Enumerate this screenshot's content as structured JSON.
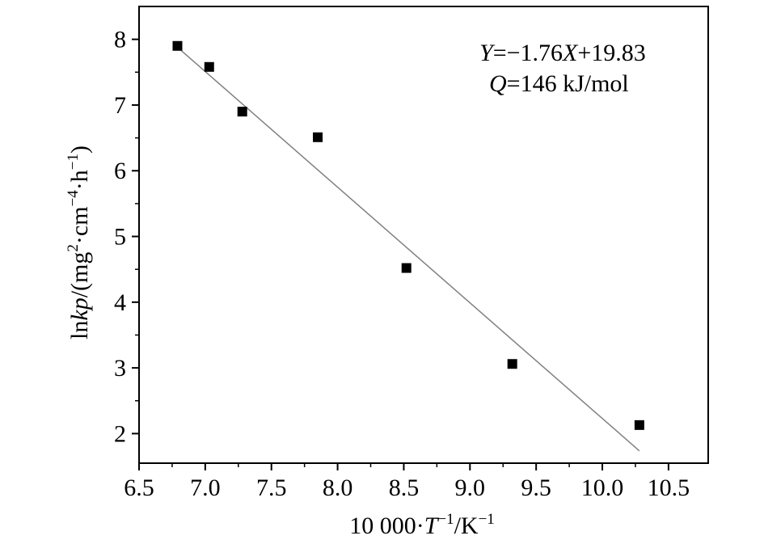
{
  "chart_data": {
    "type": "scatter",
    "title": "",
    "xlabel": {
      "prefix": "10 000·",
      "var": "T",
      "exp1": "−1",
      "unit": "/K",
      "exp2": "−1"
    },
    "ylabel": {
      "prefix": "ln",
      "var": "kp",
      "paren_open": "/(mg",
      "exp_a": "2",
      "mid": "·cm",
      "exp_b": "−4",
      "end": "·h",
      "exp_c": "−1",
      "close": ")"
    },
    "xlim": [
      6.5,
      10.8
    ],
    "ylim": [
      1.55,
      8.5
    ],
    "xticks": [
      6.5,
      7.0,
      7.5,
      8.0,
      8.5,
      9.0,
      9.5,
      10.0,
      10.5
    ],
    "xtick_labels": [
      "6.5",
      "7.0",
      "7.5",
      "8.0",
      "8.5",
      "9.0",
      "9.5",
      "10.0",
      "10.5"
    ],
    "yticks": [
      2,
      3,
      4,
      5,
      6,
      7,
      8
    ],
    "ytick_labels": [
      "2",
      "3",
      "4",
      "5",
      "6",
      "7",
      "8"
    ],
    "grid": false,
    "legend": "none",
    "series": [
      {
        "marker": "square",
        "color": "#000000",
        "x": [
          6.79,
          7.03,
          7.28,
          7.85,
          8.52,
          9.32,
          10.28
        ],
        "y": [
          7.9,
          7.58,
          6.9,
          6.51,
          4.52,
          3.06,
          2.13
        ]
      }
    ],
    "fit_line": {
      "slope": -1.76,
      "intercept": 19.83,
      "x_range": [
        6.79,
        10.28
      ],
      "color": "#808080"
    },
    "annotations": [
      {
        "position": "top-right",
        "line1": {
          "var": "Y",
          "eq": "=−1.76",
          "var2": "X",
          "rest": "+19.83"
        },
        "line2": {
          "var": "Q",
          "rest": "=146 kJ/mol"
        }
      }
    ]
  }
}
